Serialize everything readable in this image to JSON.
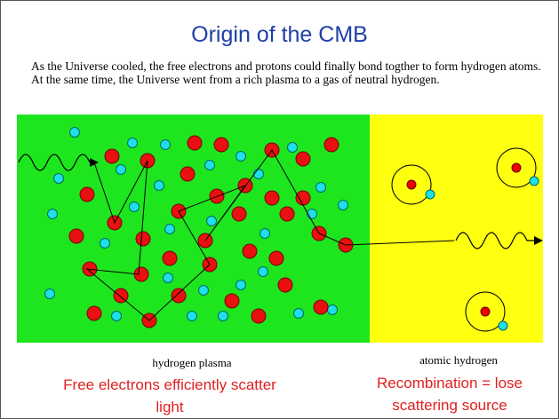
{
  "title": "Origin of the CMB",
  "description": "As the Universe cooled, the free electrons and protons could finally bond togther to form hydrogen atoms.  At the same time, the Universe went from a rich plasma to a gas of neutral hydrogen.",
  "panels": [
    {
      "label": "hydrogen plasma",
      "caption": "Free electrons efficiently scatter light"
    },
    {
      "label": "atomic hydrogen",
      "caption": "Recombination = lose scattering source"
    }
  ]
}
